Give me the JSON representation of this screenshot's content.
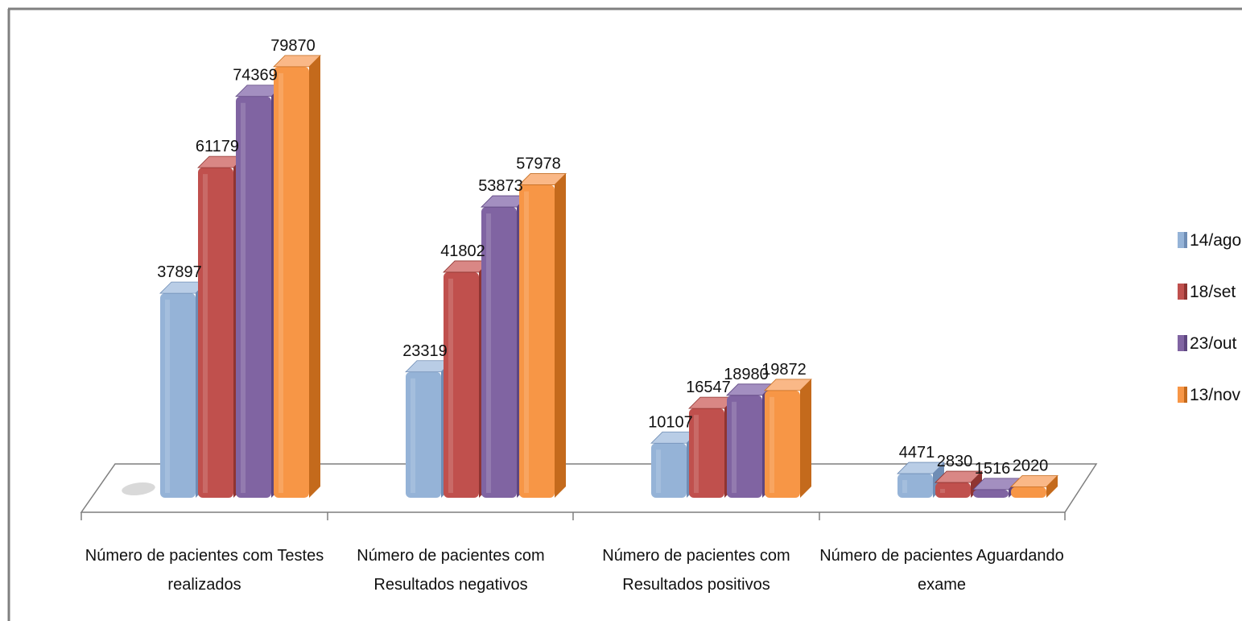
{
  "chart_data": {
    "type": "bar",
    "categories": [
      [
        "Número de pacientes com Testes",
        "realizados"
      ],
      [
        "Número de pacientes com",
        "Resultados negativos"
      ],
      [
        "Número de pacientes com",
        "Resultados positivos"
      ],
      [
        "Número de pacientes Aguardando",
        "exame"
      ]
    ],
    "series": [
      {
        "name": "14/ago",
        "values": [
          37897,
          23319,
          10107,
          4471
        ]
      },
      {
        "name": "18/set",
        "values": [
          61179,
          41802,
          16547,
          2830
        ]
      },
      {
        "name": "23/out",
        "values": [
          74369,
          53873,
          18980,
          1516
        ]
      },
      {
        "name": "13/nov",
        "values": [
          79870,
          57978,
          19872,
          2020
        ]
      }
    ],
    "ylim": [
      0,
      80000
    ],
    "legend_position": "right",
    "grid": false,
    "style": "3d-column"
  },
  "colors": {
    "series_fill": [
      "#95b3d7",
      "#c0504d",
      "#8064a2",
      "#f79646"
    ],
    "series_side": [
      "#6f8db5",
      "#8f3431",
      "#5e4680",
      "#c46a1c"
    ],
    "series_top": [
      "#b9cde6",
      "#d98785",
      "#a38fc0",
      "#fab887"
    ],
    "floor": "#ffffff",
    "floor_edge": "#7f7f7f",
    "frame": "#808080"
  }
}
